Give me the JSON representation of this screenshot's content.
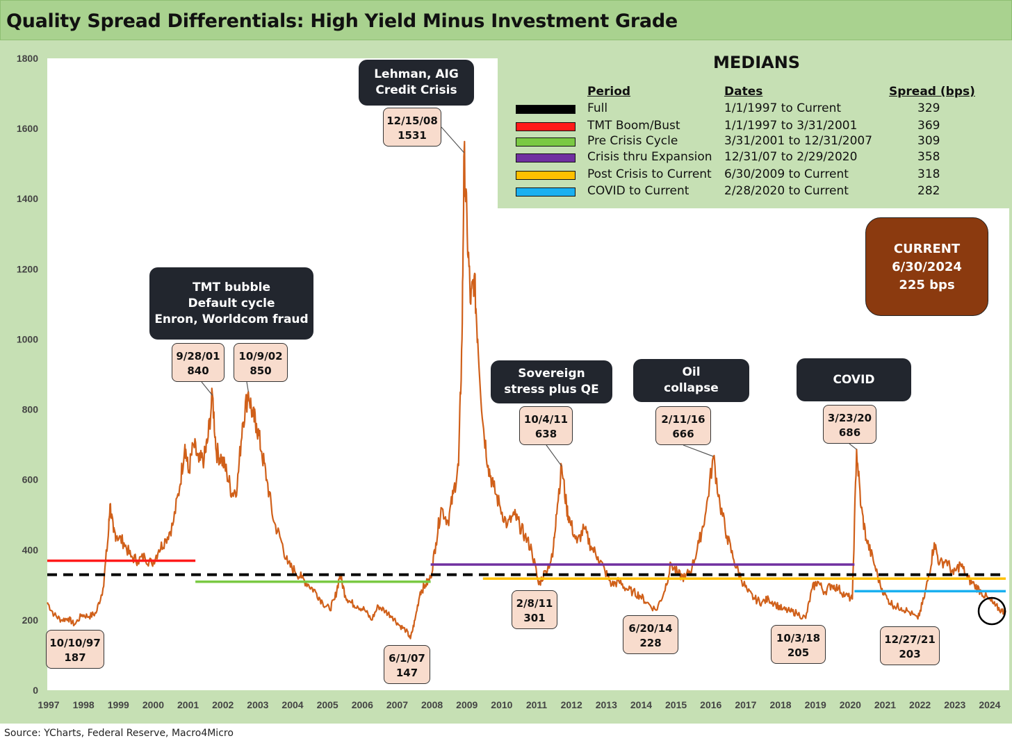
{
  "title": "Quality Spread Differentials: High Yield Minus Investment Grade",
  "source": "Source: YCharts, Federal Reserve, Macro4Micro",
  "colors": {
    "series": "#d0601a",
    "full": "#000000",
    "tmt": "#ff1a1a",
    "pre_crisis": "#7ac943",
    "crisis_expansion": "#7030a0",
    "post_crisis": "#ffc000",
    "covid": "#1ab0f0",
    "header_bg": "#a9d28f",
    "panel_bg": "#c6e0b4",
    "current_bg": "#8b3a0f"
  },
  "medians": {
    "title": "MEDIANS",
    "headers": {
      "period": "Period",
      "dates": "Dates",
      "spread": "Spread (bps)"
    },
    "rows": [
      {
        "period": "Full",
        "dates": "1/1/1997 to Current",
        "spread": "329",
        "color": "#000000"
      },
      {
        "period": "TMT Boom/Bust",
        "dates": "1/1/1997 to 3/31/2001",
        "spread": "369",
        "color": "#ff1a1a"
      },
      {
        "period": "Pre Crisis Cycle",
        "dates": "3/31/2001 to 12/31/2007",
        "spread": "309",
        "color": "#7ac943"
      },
      {
        "period": "Crisis thru Expansion",
        "dates": "12/31/07 to 2/29/2020",
        "spread": "358",
        "color": "#7030a0"
      },
      {
        "period": "Post Crisis to Current",
        "dates": "6/30/2009 to Current",
        "spread": "318",
        "color": "#ffc000"
      },
      {
        "period": "COVID to Current",
        "dates": "2/28/2020 to Current",
        "spread": "282",
        "color": "#1ab0f0"
      }
    ]
  },
  "current": {
    "line1": "CURRENT",
    "line2": "6/30/2024",
    "line3": "225 bps"
  },
  "event_boxes": {
    "lehman": [
      "Lehman, AIG",
      "Credit Crisis"
    ],
    "tmt": [
      "TMT bubble",
      "Default cycle",
      "Enron, Worldcom fraud"
    ],
    "sovereign": [
      "Sovereign",
      "stress plus QE"
    ],
    "oil": [
      "Oil",
      "collapse"
    ],
    "covid": [
      "COVID"
    ]
  },
  "date_labels": {
    "d971010": [
      "10/10/97",
      "187"
    ],
    "d010928": [
      "9/28/01",
      "840"
    ],
    "d021009": [
      "10/9/02",
      "850"
    ],
    "d081215": [
      "12/15/08",
      "1531"
    ],
    "d070601": [
      "6/1/07",
      "147"
    ],
    "d111004": [
      "10/4/11",
      "638"
    ],
    "d110208": [
      "2/8/11",
      "301"
    ],
    "d140620": [
      "6/20/14",
      "228"
    ],
    "d160211": [
      "2/11/16",
      "666"
    ],
    "d181003": [
      "10/3/18",
      "205"
    ],
    "d200323": [
      "3/23/20",
      "686"
    ],
    "d211227": [
      "12/27/21",
      "203"
    ]
  },
  "chart_data": {
    "type": "line",
    "title": "Quality Spread Differentials: High Yield Minus Investment Grade",
    "xlabel": "",
    "ylabel": "",
    "ylim": [
      0,
      1800
    ],
    "xlim": [
      1997,
      2024.6
    ],
    "yticks": [
      0,
      200,
      400,
      600,
      800,
      1000,
      1200,
      1400,
      1600,
      1800
    ],
    "xticks": [
      "1997",
      "1998",
      "1999",
      "2000",
      "2001",
      "2002",
      "2003",
      "2004",
      "2005",
      "2006",
      "2007",
      "2008",
      "2009",
      "2010",
      "2011",
      "2012",
      "2013",
      "2014",
      "2015",
      "2016",
      "2017",
      "2018",
      "2019",
      "2020",
      "2021",
      "2022",
      "2023",
      "2024"
    ],
    "series": [
      {
        "name": "HY minus IG spread (bps)",
        "points": [
          [
            1997.0,
            250
          ],
          [
            1997.2,
            215
          ],
          [
            1997.4,
            200
          ],
          [
            1997.6,
            205
          ],
          [
            1997.78,
            187
          ],
          [
            1998.0,
            215
          ],
          [
            1998.2,
            210
          ],
          [
            1998.4,
            220
          ],
          [
            1998.6,
            290
          ],
          [
            1998.75,
            440
          ],
          [
            1998.8,
            530
          ],
          [
            1998.9,
            450
          ],
          [
            1999.0,
            440
          ],
          [
            1999.2,
            420
          ],
          [
            1999.4,
            380
          ],
          [
            1999.6,
            370
          ],
          [
            1999.8,
            380
          ],
          [
            2000.0,
            360
          ],
          [
            2000.2,
            400
          ],
          [
            2000.4,
            430
          ],
          [
            2000.6,
            470
          ],
          [
            2000.8,
            580
          ],
          [
            2000.95,
            700
          ],
          [
            2001.05,
            620
          ],
          [
            2001.2,
            700
          ],
          [
            2001.35,
            650
          ],
          [
            2001.5,
            660
          ],
          [
            2001.6,
            710
          ],
          [
            2001.74,
            840
          ],
          [
            2001.85,
            680
          ],
          [
            2002.0,
            660
          ],
          [
            2002.15,
            620
          ],
          [
            2002.3,
            560
          ],
          [
            2002.45,
            580
          ],
          [
            2002.6,
            760
          ],
          [
            2002.77,
            850
          ],
          [
            2002.9,
            780
          ],
          [
            2003.0,
            760
          ],
          [
            2003.15,
            680
          ],
          [
            2003.3,
            600
          ],
          [
            2003.5,
            480
          ],
          [
            2003.7,
            430
          ],
          [
            2003.9,
            360
          ],
          [
            2004.1,
            340
          ],
          [
            2004.3,
            320
          ],
          [
            2004.5,
            300
          ],
          [
            2004.7,
            280
          ],
          [
            2004.9,
            250
          ],
          [
            2005.1,
            230
          ],
          [
            2005.25,
            260
          ],
          [
            2005.4,
            330
          ],
          [
            2005.55,
            270
          ],
          [
            2005.7,
            250
          ],
          [
            2005.9,
            240
          ],
          [
            2006.1,
            230
          ],
          [
            2006.3,
            200
          ],
          [
            2006.5,
            240
          ],
          [
            2006.7,
            225
          ],
          [
            2006.9,
            210
          ],
          [
            2007.1,
            185
          ],
          [
            2007.3,
            170
          ],
          [
            2007.42,
            147
          ],
          [
            2007.55,
            200
          ],
          [
            2007.7,
            280
          ],
          [
            2007.85,
            300
          ],
          [
            2008.0,
            320
          ],
          [
            2008.15,
            420
          ],
          [
            2008.3,
            520
          ],
          [
            2008.5,
            480
          ],
          [
            2008.65,
            560
          ],
          [
            2008.8,
            640
          ],
          [
            2008.9,
            1000
          ],
          [
            2008.96,
            1531
          ],
          [
            2009.05,
            1300
          ],
          [
            2009.15,
            1100
          ],
          [
            2009.25,
            1180
          ],
          [
            2009.35,
            1000
          ],
          [
            2009.5,
            760
          ],
          [
            2009.65,
            640
          ],
          [
            2009.8,
            580
          ],
          [
            2010.0,
            520
          ],
          [
            2010.2,
            470
          ],
          [
            2010.4,
            500
          ],
          [
            2010.55,
            470
          ],
          [
            2010.7,
            440
          ],
          [
            2010.9,
            400
          ],
          [
            2011.1,
            301
          ],
          [
            2011.3,
            340
          ],
          [
            2011.5,
            380
          ],
          [
            2011.6,
            500
          ],
          [
            2011.76,
            638
          ],
          [
            2011.9,
            520
          ],
          [
            2012.0,
            480
          ],
          [
            2012.2,
            420
          ],
          [
            2012.4,
            460
          ],
          [
            2012.6,
            410
          ],
          [
            2012.8,
            380
          ],
          [
            2013.0,
            340
          ],
          [
            2013.2,
            300
          ],
          [
            2013.4,
            310
          ],
          [
            2013.6,
            290
          ],
          [
            2013.8,
            280
          ],
          [
            2014.0,
            270
          ],
          [
            2014.2,
            250
          ],
          [
            2014.47,
            228
          ],
          [
            2014.7,
            280
          ],
          [
            2014.9,
            360
          ],
          [
            2015.1,
            330
          ],
          [
            2015.3,
            320
          ],
          [
            2015.5,
            350
          ],
          [
            2015.7,
            420
          ],
          [
            2015.9,
            510
          ],
          [
            2016.11,
            666
          ],
          [
            2016.3,
            530
          ],
          [
            2016.5,
            440
          ],
          [
            2016.7,
            370
          ],
          [
            2016.9,
            320
          ],
          [
            2017.1,
            280
          ],
          [
            2017.3,
            260
          ],
          [
            2017.5,
            250
          ],
          [
            2017.7,
            260
          ],
          [
            2017.9,
            245
          ],
          [
            2018.1,
            230
          ],
          [
            2018.3,
            225
          ],
          [
            2018.5,
            220
          ],
          [
            2018.76,
            205
          ],
          [
            2018.95,
            290
          ],
          [
            2019.1,
            310
          ],
          [
            2019.3,
            280
          ],
          [
            2019.5,
            300
          ],
          [
            2019.7,
            290
          ],
          [
            2019.9,
            270
          ],
          [
            2020.1,
            260
          ],
          [
            2020.22,
            686
          ],
          [
            2020.35,
            520
          ],
          [
            2020.5,
            430
          ],
          [
            2020.7,
            370
          ],
          [
            2020.9,
            300
          ],
          [
            2021.1,
            260
          ],
          [
            2021.3,
            240
          ],
          [
            2021.5,
            235
          ],
          [
            2021.7,
            225
          ],
          [
            2021.98,
            203
          ],
          [
            2022.15,
            260
          ],
          [
            2022.3,
            330
          ],
          [
            2022.45,
            420
          ],
          [
            2022.6,
            360
          ],
          [
            2022.8,
            370
          ],
          [
            2023.0,
            330
          ],
          [
            2023.2,
            360
          ],
          [
            2023.4,
            320
          ],
          [
            2023.6,
            300
          ],
          [
            2023.8,
            280
          ],
          [
            2024.0,
            260
          ],
          [
            2024.2,
            240
          ],
          [
            2024.4,
            225
          ],
          [
            2024.5,
            225
          ]
        ]
      }
    ],
    "medians": [
      {
        "name": "Full",
        "value": 329,
        "start": 1997.0,
        "end": 2024.5,
        "dashed": true,
        "color": "#000000"
      },
      {
        "name": "TMT Boom/Bust",
        "value": 369,
        "start": 1997.0,
        "end": 2001.25,
        "color": "#ff1a1a"
      },
      {
        "name": "Pre Crisis Cycle",
        "value": 309,
        "start": 2001.25,
        "end": 2008.0,
        "color": "#7ac943"
      },
      {
        "name": "Crisis thru Expansion",
        "value": 358,
        "start": 2008.0,
        "end": 2020.16,
        "color": "#7030a0"
      },
      {
        "name": "Post Crisis to Current",
        "value": 318,
        "start": 2009.5,
        "end": 2024.5,
        "color": "#ffc000"
      },
      {
        "name": "COVID to Current",
        "value": 282,
        "start": 2020.16,
        "end": 2024.5,
        "color": "#1ab0f0"
      }
    ],
    "annotations": [
      {
        "date": "10/10/97",
        "value": 187
      },
      {
        "date": "9/28/01",
        "value": 840
      },
      {
        "date": "10/9/02",
        "value": 850
      },
      {
        "date": "12/15/08",
        "value": 1531
      },
      {
        "date": "6/1/07",
        "value": 147
      },
      {
        "date": "10/4/11",
        "value": 638
      },
      {
        "date": "2/8/11",
        "value": 301
      },
      {
        "date": "6/20/14",
        "value": 228
      },
      {
        "date": "2/11/16",
        "value": 666
      },
      {
        "date": "10/3/18",
        "value": 205
      },
      {
        "date": "3/23/20",
        "value": 686
      },
      {
        "date": "12/27/21",
        "value": 203
      }
    ]
  }
}
